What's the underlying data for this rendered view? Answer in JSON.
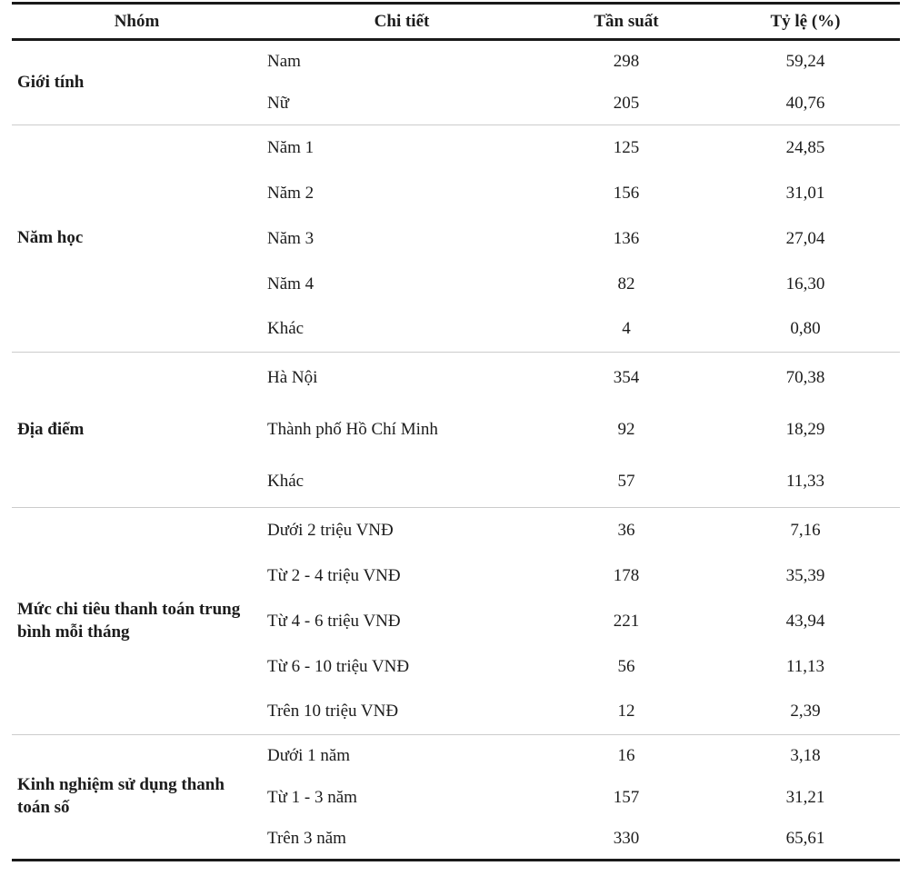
{
  "colors": {
    "rule_dark": "#1a1a1a",
    "rule_light": "#cccccc",
    "text": "#1c1c1c",
    "background": "#ffffff"
  },
  "table": {
    "headers": {
      "group": "Nhóm",
      "detail": "Chi tiết",
      "frequency": "Tần suất",
      "percent": "Tỷ lệ (%)"
    },
    "groups": [
      {
        "label": "Giới tính",
        "rows": [
          {
            "detail": "Nam",
            "frequency": "298",
            "percent": "59,24"
          },
          {
            "detail": "Nữ",
            "frequency": "205",
            "percent": "40,76"
          }
        ]
      },
      {
        "label": "Năm học",
        "rows": [
          {
            "detail": "Năm 1",
            "frequency": "125",
            "percent": "24,85"
          },
          {
            "detail": "Năm 2",
            "frequency": "156",
            "percent": "31,01"
          },
          {
            "detail": "Năm 3",
            "frequency": "136",
            "percent": "27,04"
          },
          {
            "detail": "Năm 4",
            "frequency": "82",
            "percent": "16,30"
          },
          {
            "detail": "Khác",
            "frequency": "4",
            "percent": "0,80"
          }
        ]
      },
      {
        "label": "Địa điểm",
        "rows": [
          {
            "detail": "Hà Nội",
            "frequency": "354",
            "percent": "70,38"
          },
          {
            "detail": "Thành phố Hồ Chí Minh",
            "frequency": "92",
            "percent": "18,29"
          },
          {
            "detail": "Khác",
            "frequency": "57",
            "percent": "11,33"
          }
        ]
      },
      {
        "label": "Mức chi tiêu thanh toán trung bình mỗi tháng",
        "rows": [
          {
            "detail": "Dưới 2 triệu VNĐ",
            "frequency": "36",
            "percent": "7,16"
          },
          {
            "detail": "Từ 2 - 4 triệu VNĐ",
            "frequency": "178",
            "percent": "35,39"
          },
          {
            "detail": "Từ 4 - 6 triệu VNĐ",
            "frequency": "221",
            "percent": "43,94"
          },
          {
            "detail": "Từ 6 - 10 triệu VNĐ",
            "frequency": "56",
            "percent": "11,13"
          },
          {
            "detail": "Trên 10 triệu VNĐ",
            "frequency": "12",
            "percent": "2,39"
          }
        ]
      },
      {
        "label": "Kinh nghiệm sử dụng thanh toán số",
        "rows": [
          {
            "detail": "Dưới 1 năm",
            "frequency": "16",
            "percent": "3,18"
          },
          {
            "detail": "Từ 1 - 3 năm",
            "frequency": "157",
            "percent": "31,21"
          },
          {
            "detail": "Trên 3 năm",
            "frequency": "330",
            "percent": "65,61"
          }
        ]
      }
    ]
  }
}
